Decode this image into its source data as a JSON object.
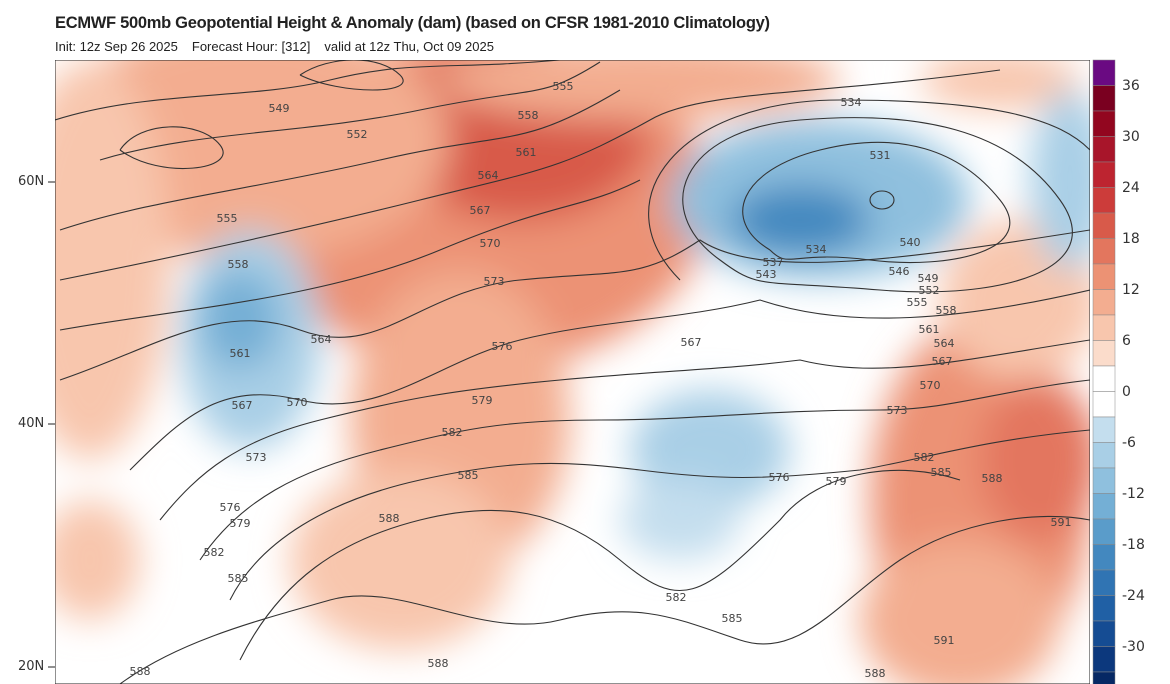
{
  "header": {
    "title": "ECMWF 500mb Geopotential Height & Anomaly (dam) (based on CFSR 1981-2010 Climatology)",
    "init": "Init: 12z Sep 26 2025",
    "forecast_hour": "Forecast Hour: [312]",
    "valid": "valid at 12z Thu, Oct 09 2025"
  },
  "map": {
    "latitude_labels": [
      "60N",
      "40N",
      "20N"
    ],
    "contour_interval_dam": 3,
    "contour_labels": [
      "549",
      "552",
      "555",
      "558",
      "561",
      "564",
      "567",
      "570",
      "573",
      "576",
      "579",
      "582",
      "585",
      "588",
      "555",
      "558",
      "561",
      "564",
      "567",
      "570",
      "573",
      "576",
      "579",
      "582",
      "585",
      "588",
      "588",
      "534",
      "531",
      "534",
      "537",
      "543",
      "540",
      "546",
      "549",
      "552",
      "555",
      "558",
      "561",
      "564",
      "567",
      "570",
      "573",
      "576",
      "579",
      "582",
      "585",
      "588",
      "591",
      "567",
      "582",
      "585",
      "591",
      "588"
    ]
  },
  "colorbar": {
    "tick_labels": [
      "36",
      "30",
      "24",
      "18",
      "12",
      "6",
      "0",
      "-6",
      "-12",
      "-18",
      "-24",
      "-30"
    ],
    "colors": [
      "#6a0a82",
      "#7a0020",
      "#92061f",
      "#a8152a",
      "#bd2430",
      "#cc3c3a",
      "#d85a4a",
      "#e3765e",
      "#ec9274",
      "#f3ad90",
      "#f8c6ad",
      "#fbdccb",
      "#ffffff",
      "#ffffff",
      "#c4deee",
      "#a9cfe6",
      "#8fc0de",
      "#74afd5",
      "#5a9cca",
      "#4388bf",
      "#3074b3",
      "#2060a5",
      "#154c93",
      "#0c387d",
      "#062864"
    ]
  }
}
